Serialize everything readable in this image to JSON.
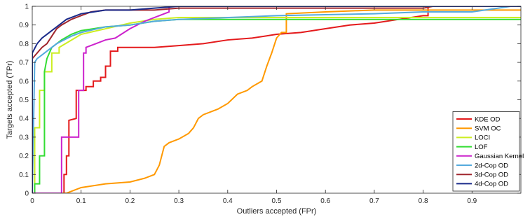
{
  "chart_data": {
    "type": "line",
    "title": "",
    "xlabel": "Outliers accepted (FPr)",
    "ylabel": "Targets accepted (TPr)",
    "xlim": [
      0,
      1
    ],
    "ylim": [
      0,
      1
    ],
    "xticks": [
      "0",
      "0.1",
      "0.2",
      "0.3",
      "0.4",
      "0.5",
      "0.6",
      "0.7",
      "0.8",
      "0.9"
    ],
    "yticks": [
      "0",
      "0.1",
      "0.2",
      "0.3",
      "0.4",
      "0.5",
      "0.6",
      "0.7",
      "0.8",
      "0.9",
      "1"
    ],
    "grid": false,
    "legend_position": "bottom-right",
    "series": [
      {
        "name": "KDE OD",
        "color": "#e41a1c",
        "x": [
          0.0,
          0.065,
          0.065,
          0.07,
          0.07,
          0.075,
          0.075,
          0.09,
          0.09,
          0.11,
          0.11,
          0.125,
          0.125,
          0.14,
          0.14,
          0.15,
          0.15,
          0.16,
          0.16,
          0.175,
          0.175,
          0.2,
          0.25,
          0.3,
          0.35,
          0.4,
          0.45,
          0.5,
          0.55,
          0.6,
          0.65,
          0.7,
          0.75,
          0.8,
          0.81,
          0.81,
          1.0
        ],
        "y": [
          0.0,
          0.0,
          0.1,
          0.1,
          0.2,
          0.2,
          0.39,
          0.4,
          0.55,
          0.55,
          0.57,
          0.57,
          0.6,
          0.6,
          0.62,
          0.62,
          0.68,
          0.68,
          0.76,
          0.76,
          0.78,
          0.78,
          0.78,
          0.79,
          0.8,
          0.82,
          0.83,
          0.85,
          0.86,
          0.88,
          0.9,
          0.91,
          0.93,
          0.95,
          0.95,
          1.0,
          1.0
        ]
      },
      {
        "name": "SVM OC",
        "color": "#ff9900",
        "x": [
          0.0,
          0.07,
          0.08,
          0.1,
          0.15,
          0.2,
          0.23,
          0.25,
          0.26,
          0.27,
          0.28,
          0.3,
          0.32,
          0.33,
          0.34,
          0.35,
          0.38,
          0.4,
          0.42,
          0.44,
          0.45,
          0.47,
          0.48,
          0.49,
          0.5,
          0.51,
          0.52,
          0.52,
          0.6,
          0.7,
          0.8,
          1.0
        ],
        "y": [
          0.0,
          0.0,
          0.01,
          0.03,
          0.05,
          0.06,
          0.08,
          0.1,
          0.15,
          0.25,
          0.27,
          0.29,
          0.32,
          0.35,
          0.4,
          0.42,
          0.45,
          0.48,
          0.53,
          0.55,
          0.57,
          0.6,
          0.68,
          0.75,
          0.83,
          0.86,
          0.86,
          0.96,
          0.97,
          0.98,
          0.98,
          0.98
        ]
      },
      {
        "name": "LOCI",
        "color": "#ccee22",
        "x": [
          0.0,
          0.005,
          0.005,
          0.015,
          0.015,
          0.025,
          0.025,
          0.04,
          0.04,
          0.055,
          0.055,
          0.1,
          0.15,
          0.2,
          0.25,
          0.3,
          0.5,
          0.75,
          1.0
        ],
        "y": [
          0.0,
          0.0,
          0.35,
          0.35,
          0.55,
          0.55,
          0.65,
          0.65,
          0.75,
          0.75,
          0.78,
          0.85,
          0.88,
          0.91,
          0.93,
          0.94,
          0.94,
          0.94,
          0.94
        ]
      },
      {
        "name": "LOF",
        "color": "#33dd33",
        "x": [
          0.0,
          0.005,
          0.005,
          0.015,
          0.015,
          0.025,
          0.025,
          0.03,
          0.04,
          0.06,
          0.08,
          0.1,
          0.15,
          0.2,
          0.25,
          0.3,
          0.5,
          0.75,
          1.0
        ],
        "y": [
          0.0,
          0.0,
          0.05,
          0.05,
          0.2,
          0.2,
          0.65,
          0.72,
          0.78,
          0.82,
          0.85,
          0.87,
          0.89,
          0.9,
          0.92,
          0.93,
          0.93,
          0.93,
          0.93
        ]
      },
      {
        "name": "Gaussian Kernel",
        "color": "#cc22cc",
        "x": [
          0.0,
          0.06,
          0.06,
          0.095,
          0.095,
          0.105,
          0.105,
          0.11,
          0.11,
          0.13,
          0.15,
          0.17,
          0.2,
          0.23,
          0.27,
          0.28,
          0.28,
          1.0
        ],
        "y": [
          0.0,
          0.0,
          0.3,
          0.3,
          0.55,
          0.55,
          0.75,
          0.75,
          0.78,
          0.8,
          0.82,
          0.83,
          0.88,
          0.92,
          0.96,
          0.97,
          1.0,
          1.0
        ]
      },
      {
        "name": "2d-Cop OD",
        "color": "#55aadd",
        "x": [
          0.0,
          0.005,
          0.01,
          0.02,
          0.03,
          0.05,
          0.08,
          0.1,
          0.15,
          0.2,
          0.25,
          0.3,
          0.5,
          0.7,
          0.8,
          0.9,
          0.98,
          1.0
        ],
        "y": [
          0.0,
          0.7,
          0.72,
          0.74,
          0.76,
          0.8,
          0.84,
          0.86,
          0.89,
          0.9,
          0.92,
          0.93,
          0.95,
          0.96,
          0.97,
          0.97,
          1.0,
          1.0
        ]
      },
      {
        "name": "3d-Cop OD",
        "color": "#a0262e",
        "x": [
          0.0,
          0.0,
          0.01,
          0.02,
          0.03,
          0.04,
          0.05,
          0.06,
          0.08,
          0.1,
          0.12,
          0.15,
          0.2,
          0.25,
          0.3,
          0.6,
          0.7,
          0.8,
          0.82,
          1.0
        ],
        "y": [
          0.0,
          0.72,
          0.75,
          0.78,
          0.8,
          0.84,
          0.88,
          0.9,
          0.93,
          0.95,
          0.97,
          0.98,
          0.98,
          0.98,
          0.99,
          0.99,
          0.99,
          0.99,
          1.0,
          1.0
        ]
      },
      {
        "name": "4d-Cop OD",
        "color": "#1a2a8a",
        "x": [
          0.0,
          0.0,
          0.01,
          0.02,
          0.03,
          0.04,
          0.05,
          0.06,
          0.07,
          0.1,
          0.15,
          0.2,
          0.25,
          0.3,
          0.5,
          1.0
        ],
        "y": [
          0.0,
          0.75,
          0.8,
          0.83,
          0.85,
          0.87,
          0.89,
          0.91,
          0.93,
          0.96,
          0.98,
          0.98,
          0.99,
          1.0,
          1.0,
          1.0
        ]
      }
    ]
  }
}
